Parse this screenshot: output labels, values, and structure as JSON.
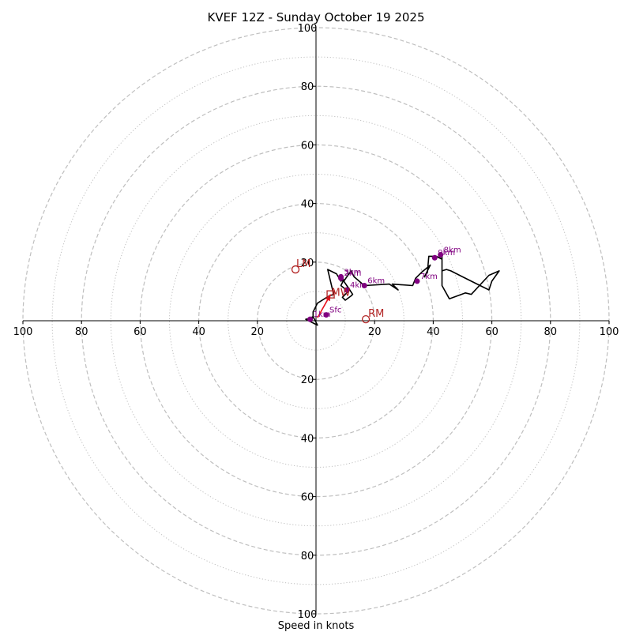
{
  "chart_data": {
    "type": "hodograph",
    "title": "KVEF 12Z - Sunday October 19 2025",
    "xlabel": "Speed in knots",
    "ring_labels": [
      "20",
      "40",
      "60",
      "80",
      "100"
    ],
    "axis_range_knots": [
      -100,
      100
    ],
    "major_rings_knots": [
      20,
      40,
      60,
      80,
      100
    ],
    "minor_rings_knots": [
      10,
      30,
      50,
      70,
      90
    ],
    "hodograph_trace": [
      [
        -3,
        0.5
      ],
      [
        -1,
        1.4
      ],
      [
        0.5,
        -1.5
      ],
      [
        -3.5,
        0.5
      ],
      [
        -1,
        1
      ],
      [
        -1,
        3
      ],
      [
        0.5,
        6
      ],
      [
        4.5,
        8.5
      ],
      [
        6,
        9
      ],
      [
        4,
        17.5
      ],
      [
        7,
        16
      ],
      [
        8.5,
        13.5
      ],
      [
        9.5,
        14
      ],
      [
        8.5,
        12
      ],
      [
        11,
        10
      ],
      [
        9,
        8
      ],
      [
        10,
        7
      ],
      [
        12,
        8.5
      ],
      [
        12.5,
        9
      ],
      [
        11.5,
        10.5
      ],
      [
        10.5,
        12
      ],
      [
        9.5,
        13.5
      ],
      [
        10.5,
        15
      ],
      [
        12,
        17
      ],
      [
        13,
        15
      ],
      [
        16.5,
        12
      ],
      [
        25,
        12.5
      ],
      [
        28,
        10.5
      ],
      [
        26,
        12.5
      ],
      [
        33,
        12
      ],
      [
        34,
        14.5
      ],
      [
        36,
        16.5
      ],
      [
        39,
        19
      ],
      [
        37,
        15
      ],
      [
        38,
        16.5
      ],
      [
        38.5,
        22
      ],
      [
        41,
        22
      ],
      [
        43,
        21
      ],
      [
        43,
        17
      ],
      [
        44.5,
        17.5
      ],
      [
        46,
        17
      ],
      [
        50,
        15
      ],
      [
        55,
        12.5
      ],
      [
        59,
        10.5
      ],
      [
        60,
        13.5
      ],
      [
        62.5,
        17
      ],
      [
        59,
        15.5
      ],
      [
        53,
        9
      ],
      [
        51,
        9.5
      ],
      [
        45.5,
        7.5
      ],
      [
        43,
        12
      ],
      [
        43,
        20
      ],
      [
        43,
        23
      ]
    ],
    "height_markers": [
      {
        "label": "1km",
        "u": -2,
        "v": 0.5
      },
      {
        "label": "Sfc",
        "u": 3.5,
        "v": 2
      },
      {
        "label": "4km",
        "u": 10.5,
        "v": 10.5
      },
      {
        "label": "2km",
        "u": 8.5,
        "v": 14.5
      },
      {
        "label": "3km",
        "u": 8.5,
        "v": 15
      },
      {
        "label": "6km",
        "u": 16.5,
        "v": 12
      },
      {
        "label": "7km",
        "u": 34.5,
        "v": 13.5
      },
      {
        "label": "9km",
        "u": 40.5,
        "v": 21.5
      },
      {
        "label": "8km",
        "u": 42.5,
        "v": 22.5
      }
    ],
    "storm_motion": {
      "LM": {
        "label": "LM",
        "u": -7,
        "v": 17.5
      },
      "RM": {
        "label": "RM",
        "u": 17,
        "v": 0.5
      },
      "MW": {
        "label": "MW",
        "u": 5,
        "v": 9
      }
    },
    "bunkers_vector": {
      "from": [
        0.5,
        1
      ],
      "to": [
        5,
        9
      ]
    }
  },
  "colors": {
    "trace": "#000000",
    "marker": "#800080",
    "storm": "#b22222",
    "vector": "#e8101a",
    "grid": "#bfbfbf"
  }
}
